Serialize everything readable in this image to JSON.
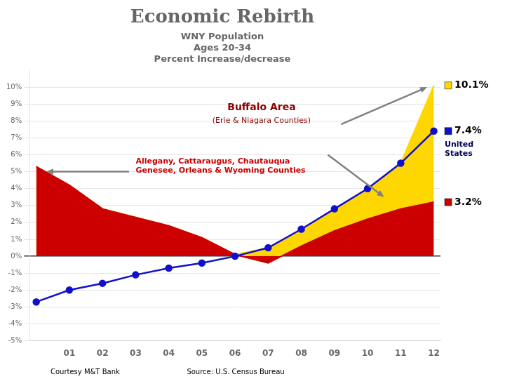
{
  "chart_data": {
    "type": "line",
    "title": "Economic Rebirth",
    "subtitle": [
      "WNY Population",
      "Ages 20-34",
      "Percent Increase/decrease"
    ],
    "x": [
      0,
      1,
      2,
      3,
      4,
      5,
      6,
      7,
      8,
      9,
      10,
      11,
      12
    ],
    "xlim": [
      -0.2,
      12.2
    ],
    "xticks": [
      {
        "value": 1,
        "label": "01"
      },
      {
        "value": 2,
        "label": "02"
      },
      {
        "value": 3,
        "label": "03"
      },
      {
        "value": 4,
        "label": "04"
      },
      {
        "value": 5,
        "label": "05"
      },
      {
        "value": 6,
        "label": "06"
      },
      {
        "value": 7,
        "label": "07"
      },
      {
        "value": 8,
        "label": "08"
      },
      {
        "value": 9,
        "label": "09"
      },
      {
        "value": 10,
        "label": "10"
      },
      {
        "value": 11,
        "label": "11"
      },
      {
        "value": 12,
        "label": "12"
      }
    ],
    "ylim": [
      -5,
      11
    ],
    "yticks": [
      {
        "value": -5,
        "label": "-5%"
      },
      {
        "value": -4,
        "label": "-4%"
      },
      {
        "value": -3,
        "label": "-3%"
      },
      {
        "value": -2,
        "label": "-2%"
      },
      {
        "value": -1,
        "label": "-1%"
      },
      {
        "value": 0,
        "label": "0%"
      },
      {
        "value": 1,
        "label": "1%"
      },
      {
        "value": 2,
        "label": "2%"
      },
      {
        "value": 3,
        "label": "3%"
      },
      {
        "value": 4,
        "label": "4%"
      },
      {
        "value": 5,
        "label": "5%"
      },
      {
        "value": 6,
        "label": "6%"
      },
      {
        "value": 7,
        "label": "7%"
      },
      {
        "value": 8,
        "label": "8%"
      },
      {
        "value": 9,
        "label": "9%"
      },
      {
        "value": 10,
        "label": "10%"
      }
    ],
    "grid": true,
    "series": [
      {
        "type": "area",
        "color": "#FFD700",
        "values": [
          5.3,
          4.2,
          2.8,
          2.3,
          1.8,
          1.1,
          0.1,
          0.5,
          1.6,
          2.8,
          4.0,
          5.5,
          10.1
        ],
        "value_labels": [
          null,
          null,
          null,
          null,
          null,
          null,
          null,
          null,
          null,
          null,
          null,
          null,
          "10.1%"
        ]
      },
      {
        "type": "area",
        "color": "#CC0000",
        "values": [
          5.3,
          4.2,
          2.8,
          2.3,
          1.8,
          1.1,
          0.1,
          -0.4,
          0.6,
          1.5,
          2.2,
          2.8,
          3.2
        ],
        "value_labels": [
          null,
          null,
          null,
          null,
          null,
          null,
          null,
          null,
          null,
          null,
          null,
          null,
          "3.2%"
        ]
      },
      {
        "type": "line",
        "color": "#1010CC",
        "marker": "circle",
        "values": [
          -2.7,
          -2.0,
          -1.6,
          -1.1,
          -0.7,
          -0.4,
          0.0,
          0.5,
          1.6,
          2.8,
          4.0,
          5.5,
          7.4
        ],
        "value_labels": [
          null,
          null,
          null,
          null,
          null,
          null,
          null,
          null,
          null,
          null,
          null,
          null,
          "7.4%"
        ]
      }
    ],
    "annotations": [
      {
        "text": "Buffalo Area",
        "color": "#8B0000"
      },
      {
        "text": "(Erie & Niagara Counties)",
        "color": "#8B0000"
      },
      {
        "text": "Allegany, Cattaraugus, Chautauqua\nGenesee, Orleans & Wyoming Counties",
        "color": "#CC0000"
      },
      {
        "text": "United\nStates",
        "color": "#00005a"
      },
      {
        "text": "Courtesy M&T Bank",
        "color": "#000000"
      },
      {
        "text": "Source: U.S. Census Bureau",
        "color": "#000000"
      }
    ]
  }
}
